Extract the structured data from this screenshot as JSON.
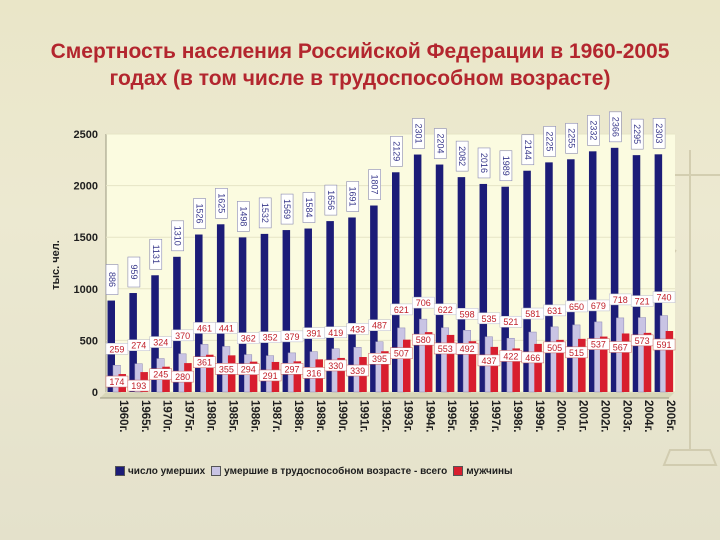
{
  "title": "Смертность населения Российской Федерации в 1960-2005 годах (в том числе в трудоспособном возрасте)",
  "colors": {
    "total": "#1c1c78",
    "working": "#c9c4e4",
    "men": "#d81e2e",
    "label_total": "#3a3a8c",
    "label_red": "#c0202a",
    "plot_bg": "#fbfbe0"
  },
  "chart_data": {
    "type": "bar",
    "ylabel": "тыс. чел.",
    "ylim": [
      0,
      2500
    ],
    "yticks": [
      0,
      500,
      1000,
      1500,
      2000,
      2500
    ],
    "categories": [
      "1960г.",
      "1965г.",
      "1970г.",
      "1975г.",
      "1980г.",
      "1985г.",
      "1986г.",
      "1987г.",
      "1988г.",
      "1989г.",
      "1990г.",
      "1991г.",
      "1992г.",
      "1993г.",
      "1994г.",
      "1995г.",
      "1996г.",
      "1997г.",
      "1998г.",
      "1999г.",
      "2000г.",
      "2001г.",
      "2002г.",
      "2003г.",
      "2004г.",
      "2005г."
    ],
    "legend_position": "bottom",
    "series": [
      {
        "name": "число умерших",
        "values": [
          886,
          959,
          1131,
          1310,
          1526,
          1625,
          1498,
          1532,
          1569,
          1584,
          1656,
          1691,
          1807,
          2129,
          2301,
          2204,
          2082,
          2016,
          1989,
          2144,
          2225,
          2255,
          2332,
          2366,
          2295,
          2303
        ]
      },
      {
        "name": "умершие в трудоспособном возрасте - всего",
        "values": [
          259,
          274,
          324,
          370,
          461,
          441,
          362,
          352,
          379,
          391,
          419,
          433,
          487,
          621,
          706,
          622,
          598,
          535,
          521,
          581,
          631,
          650,
          679,
          718,
          721,
          740
        ]
      },
      {
        "name": "мужчины",
        "values": [
          174,
          193,
          245,
          280,
          361,
          355,
          294,
          291,
          297,
          316,
          330,
          339,
          395,
          507,
          580,
          553,
          492,
          437,
          422,
          466,
          505,
          515,
          537,
          567,
          573,
          591
        ]
      }
    ]
  }
}
